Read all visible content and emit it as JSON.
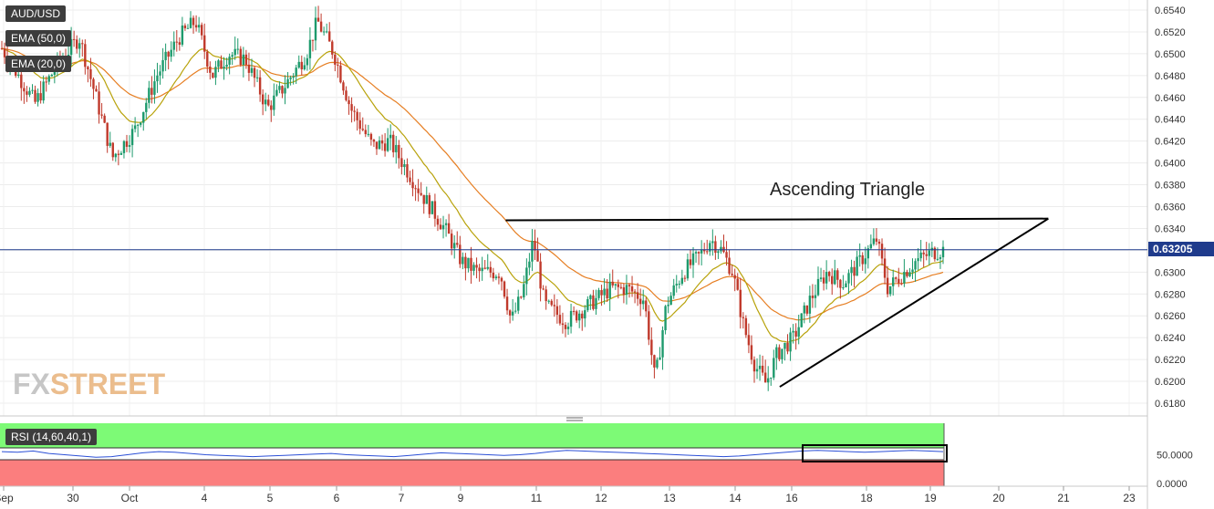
{
  "header": {
    "symbol": "AUD/USD",
    "indicators": [
      "EMA (50,0)",
      "EMA (20,0)"
    ]
  },
  "watermark": {
    "brand_fx": "FX",
    "brand_street": "STREET"
  },
  "annotation": {
    "pattern_label": "Ascending Triangle"
  },
  "colors": {
    "bull": "#1d9a6c",
    "bear": "#c0392b",
    "ema50": "#e67e22",
    "ema20": "#b8a20a",
    "price_line": "#1f3b8c",
    "rsi_line": "#2b4fd6",
    "rsi_upper_zone": "#7dfa76",
    "rsi_lower_zone": "#fb7e7e",
    "trendline": "#000000",
    "label_bg": "#3d3d3d",
    "price_badge": "#1f3b8c"
  },
  "chart_data": {
    "type": "candlestick",
    "symbol": "AUD/USD",
    "current_price": 0.63205,
    "current_price_label": "0.63205",
    "y_ticks": [
      "0.6540",
      "0.6520",
      "0.6500",
      "0.6480",
      "0.6460",
      "0.6440",
      "0.6420",
      "0.6400",
      "0.6380",
      "0.6360",
      "0.6340",
      "0.6320",
      "0.6300",
      "0.6280",
      "0.6260",
      "0.6240",
      "0.6220",
      "0.6200",
      "0.6180"
    ],
    "ylim": [
      0.6168,
      0.6548
    ],
    "x_tick_labels": [
      "Sep",
      "30",
      "Oct",
      "4",
      "5",
      "6",
      "7",
      "9",
      "11",
      "12",
      "13",
      "14",
      "16",
      "18",
      "19",
      "20",
      "21",
      "23"
    ],
    "price_path": [
      {
        "t": 0,
        "p": 0.6505
      },
      {
        "t": 0.3,
        "p": 0.648
      },
      {
        "t": 0.6,
        "p": 0.6455
      },
      {
        "t": 1.0,
        "p": 0.649
      },
      {
        "t": 1.4,
        "p": 0.6515
      },
      {
        "t": 1.7,
        "p": 0.646
      },
      {
        "t": 2.0,
        "p": 0.6405
      },
      {
        "t": 2.4,
        "p": 0.643
      },
      {
        "t": 2.8,
        "p": 0.648
      },
      {
        "t": 3.2,
        "p": 0.6515
      },
      {
        "t": 3.5,
        "p": 0.653
      },
      {
        "t": 3.8,
        "p": 0.648
      },
      {
        "t": 4.1,
        "p": 0.65
      },
      {
        "t": 4.4,
        "p": 0.6495
      },
      {
        "t": 4.8,
        "p": 0.645
      },
      {
        "t": 5.1,
        "p": 0.647
      },
      {
        "t": 5.5,
        "p": 0.65
      },
      {
        "t": 5.7,
        "p": 0.653
      },
      {
        "t": 6.0,
        "p": 0.65
      },
      {
        "t": 6.3,
        "p": 0.645
      },
      {
        "t": 6.7,
        "p": 0.6415
      },
      {
        "t": 7.0,
        "p": 0.642
      },
      {
        "t": 7.3,
        "p": 0.6395
      },
      {
        "t": 7.6,
        "p": 0.637
      },
      {
        "t": 8.0,
        "p": 0.634
      },
      {
        "t": 8.3,
        "p": 0.631
      },
      {
        "t": 8.6,
        "p": 0.63
      },
      {
        "t": 9.0,
        "p": 0.63
      },
      {
        "t": 9.2,
        "p": 0.6255
      },
      {
        "t": 9.4,
        "p": 0.628
      },
      {
        "t": 9.6,
        "p": 0.633
      },
      {
        "t": 9.8,
        "p": 0.627
      },
      {
        "t": 10.2,
        "p": 0.6255
      },
      {
        "t": 10.6,
        "p": 0.627
      },
      {
        "t": 11.0,
        "p": 0.6285
      },
      {
        "t": 11.3,
        "p": 0.6285
      },
      {
        "t": 11.6,
        "p": 0.6275
      },
      {
        "t": 11.8,
        "p": 0.62
      },
      {
        "t": 12.0,
        "p": 0.627
      },
      {
        "t": 12.3,
        "p": 0.63
      },
      {
        "t": 12.6,
        "p": 0.6315
      },
      {
        "t": 12.8,
        "p": 0.633
      },
      {
        "t": 13.0,
        "p": 0.632
      },
      {
        "t": 13.2,
        "p": 0.63
      },
      {
        "t": 13.4,
        "p": 0.625
      },
      {
        "t": 13.6,
        "p": 0.6215
      },
      {
        "t": 13.8,
        "p": 0.6198
      },
      {
        "t": 14.0,
        "p": 0.6225
      },
      {
        "t": 14.3,
        "p": 0.624
      },
      {
        "t": 14.6,
        "p": 0.6275
      },
      {
        "t": 14.9,
        "p": 0.63
      },
      {
        "t": 15.2,
        "p": 0.629
      },
      {
        "t": 15.5,
        "p": 0.631
      },
      {
        "t": 15.8,
        "p": 0.633
      },
      {
        "t": 16.0,
        "p": 0.6285
      },
      {
        "t": 16.2,
        "p": 0.6295
      },
      {
        "t": 16.5,
        "p": 0.631
      },
      {
        "t": 16.8,
        "p": 0.6318
      },
      {
        "t": 17.0,
        "p": 0.63205
      }
    ],
    "trendlines": [
      {
        "name": "resistance",
        "from": {
          "t": 9.1,
          "p": 0.63475
        },
        "to": {
          "t": 18.9,
          "p": 0.6349
        }
      },
      {
        "name": "support",
        "from": {
          "t": 14.05,
          "p": 0.6195
        },
        "to": {
          "t": 18.9,
          "p": 0.6349
        }
      }
    ],
    "rsi": {
      "label": "RSI (14,60,40,1)",
      "ticks": [
        "50.0000",
        "0.0000"
      ],
      "ylim": [
        0,
        100
      ],
      "upper_band": 60,
      "lower_band": 40,
      "values": [
        55,
        54,
        56,
        52,
        50,
        48,
        46,
        47,
        50,
        53,
        55,
        54,
        52,
        50,
        49,
        48,
        47,
        48,
        49,
        50,
        51,
        52,
        50,
        49,
        48,
        47,
        49,
        51,
        53,
        52,
        51,
        50,
        49,
        50,
        52,
        55,
        57,
        56,
        55,
        54,
        53,
        52,
        51,
        50,
        49,
        48,
        47,
        48,
        50,
        52,
        54,
        56,
        57,
        56,
        55,
        54,
        55,
        56,
        57,
        56,
        55
      ]
    }
  }
}
